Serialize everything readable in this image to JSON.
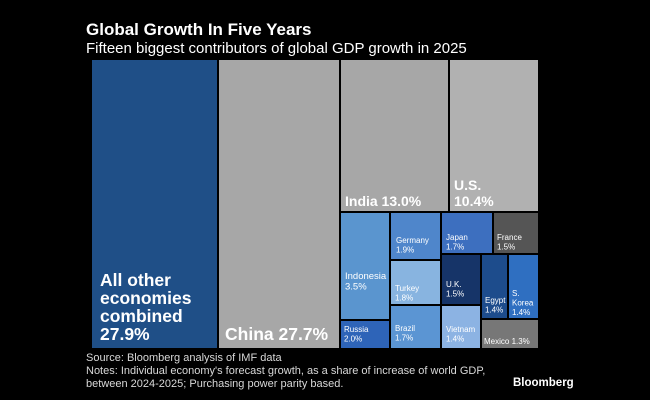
{
  "chart_data": {
    "type": "treemap",
    "title": "Global Growth In Five Years",
    "subtitle": "Fifteen biggest contributors of global GDP growth in 2025",
    "unit": "%",
    "items": [
      {
        "name": "All other economies combined",
        "value": 27.9,
        "label_lines": [
          "All other",
          "economies",
          "combined"
        ],
        "value_label": "27.9%",
        "color": "#1f4f87",
        "size": "xl"
      },
      {
        "name": "China",
        "value": 27.7,
        "label_lines": [
          "China 27.7%"
        ],
        "color": "#a7a7a7",
        "size": "xl"
      },
      {
        "name": "India",
        "value": 13.0,
        "label_lines": [
          "India 13.0%"
        ],
        "color": "#a7a7a7",
        "size": "lg"
      },
      {
        "name": "U.S.",
        "value": 10.4,
        "label_lines": [
          "U.S."
        ],
        "value_label": "10.4%",
        "color": "#b1b1b1",
        "size": "lg"
      },
      {
        "name": "Indonesia",
        "value": 3.5,
        "label_lines": [
          "Indonesia"
        ],
        "value_label": "3.5%",
        "color": "#5a95cf",
        "size": "md"
      },
      {
        "name": "Germany",
        "value": 1.9,
        "label_lines": [
          "Germany"
        ],
        "value_label": "1.9%",
        "color": "#4f86cb",
        "size": "sm"
      },
      {
        "name": "Japan",
        "value": 1.7,
        "label_lines": [
          "Japan"
        ],
        "value_label": "1.7%",
        "color": "#3d6fbf",
        "size": "sm"
      },
      {
        "name": "France",
        "value": 1.5,
        "label_lines": [
          "France"
        ],
        "value_label": "1.5%",
        "color": "#555555",
        "size": "sm"
      },
      {
        "name": "Turkey",
        "value": 1.8,
        "label_lines": [
          "Turkey"
        ],
        "value_label": "1.8%",
        "color": "#88b4e0",
        "size": "sm"
      },
      {
        "name": "U.K.",
        "value": 1.5,
        "label_lines": [
          "U.K."
        ],
        "value_label": "1.5%",
        "color": "#163468",
        "size": "sm"
      },
      {
        "name": "Egypt",
        "value": 1.4,
        "label_lines": [
          "Egypt"
        ],
        "value_label": "1.4%",
        "color": "#1d4c8c",
        "size": "sm"
      },
      {
        "name": "S. Korea",
        "value": 1.4,
        "label_lines": [
          "S.",
          "Korea"
        ],
        "value_label": "1.4%",
        "color": "#2f6fc1",
        "size": "sm"
      },
      {
        "name": "Russia",
        "value": 2.0,
        "label_lines": [
          "Russia"
        ],
        "value_label": "2.0%",
        "color": "#2e64b8",
        "size": "sm"
      },
      {
        "name": "Brazil",
        "value": 1.7,
        "label_lines": [
          "Brazil"
        ],
        "value_label": "1.7%",
        "color": "#5b95d3",
        "size": "sm"
      },
      {
        "name": "Vietnam",
        "value": 1.4,
        "label_lines": [
          "Vietnam"
        ],
        "value_label": "1.4%",
        "color": "#8cb3e3",
        "size": "sm"
      },
      {
        "name": "Mexico",
        "value": 1.3,
        "label_lines": [
          "Mexico 1.3%"
        ],
        "color": "#777777",
        "size": "sm"
      }
    ]
  },
  "footer": {
    "source": "Source: Bloomberg analysis of IMF data",
    "notes": "Notes: Individual economy's forecast growth, as a share of increase of world GDP, between 2024-2025; Purchasing power parity based.",
    "brand": "Bloomberg"
  }
}
